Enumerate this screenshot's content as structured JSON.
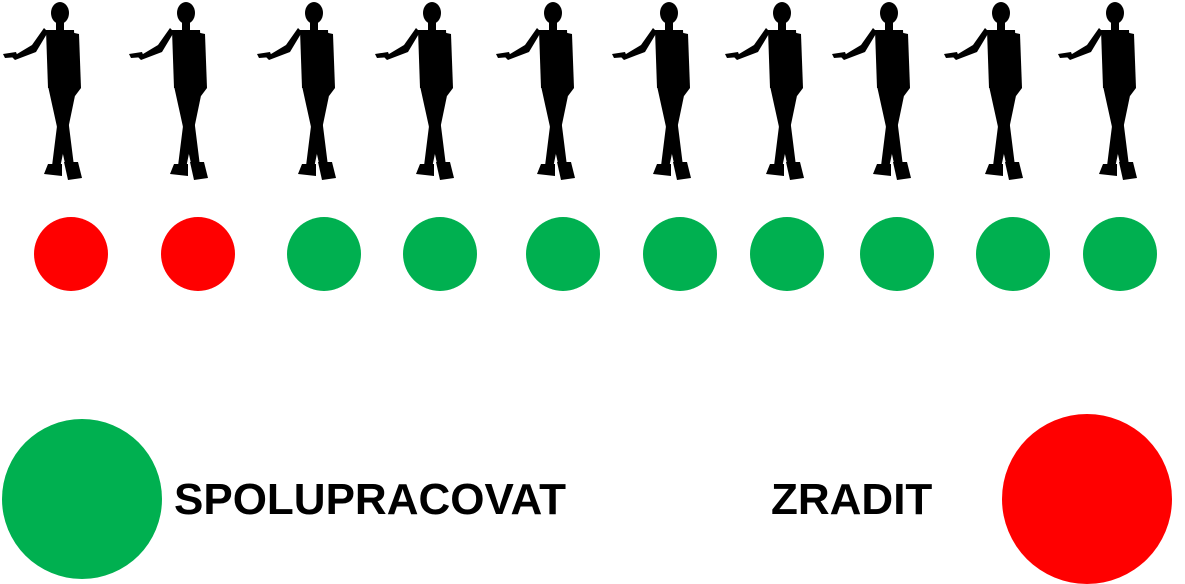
{
  "colors": {
    "cooperate": "#00b050",
    "betray": "#ff0000",
    "silhouette": "#000000"
  },
  "people": [
    {
      "icon": "person-silhouette-icon",
      "choice": "betray"
    },
    {
      "icon": "person-silhouette-icon",
      "choice": "betray"
    },
    {
      "icon": "person-silhouette-icon",
      "choice": "cooperate"
    },
    {
      "icon": "person-silhouette-icon",
      "choice": "cooperate"
    },
    {
      "icon": "person-silhouette-icon",
      "choice": "cooperate"
    },
    {
      "icon": "person-silhouette-icon",
      "choice": "cooperate"
    },
    {
      "icon": "person-silhouette-icon",
      "choice": "cooperate"
    },
    {
      "icon": "person-silhouette-icon",
      "choice": "cooperate"
    },
    {
      "icon": "person-silhouette-icon",
      "choice": "cooperate"
    },
    {
      "icon": "person-silhouette-icon",
      "choice": "cooperate"
    }
  ],
  "legend": {
    "cooperate_label": "SPOLUPRACOVAT",
    "betray_label": "ZRADIT"
  }
}
